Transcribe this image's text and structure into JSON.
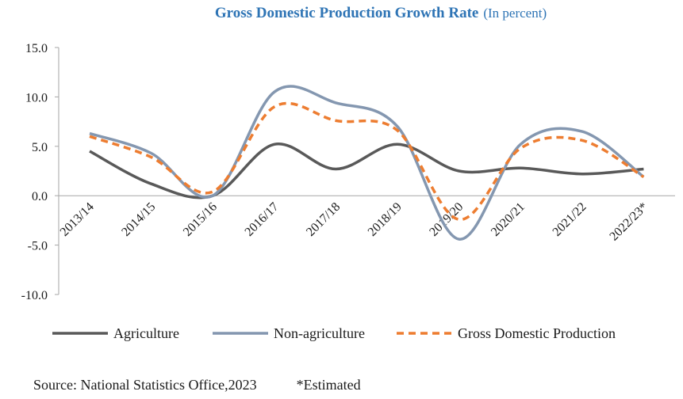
{
  "chart_data": {
    "type": "line",
    "title": "Gross Domestic Production Growth Rate",
    "subtitle": "(In percent)",
    "categories": [
      "2013/14",
      "2014/15",
      "2015/16",
      "2016/17",
      "2017/18",
      "2018/19",
      "2019/20",
      "2020/21",
      "2021/22",
      "2022/23*"
    ],
    "series": [
      {
        "name": "Agriculture",
        "values": [
          4.5,
          1.2,
          0.0,
          5.2,
          2.7,
          5.2,
          2.5,
          2.8,
          2.2,
          2.7
        ],
        "color": "#595959",
        "dash": "solid"
      },
      {
        "name": "Non-agriculture",
        "values": [
          6.3,
          4.3,
          0.0,
          10.5,
          9.4,
          7.0,
          -4.4,
          5.2,
          6.5,
          1.9
        ],
        "color": "#8497b0",
        "dash": "solid"
      },
      {
        "name": "Gross Domestic Production",
        "values": [
          6.0,
          3.9,
          0.4,
          9.0,
          7.6,
          6.6,
          -2.4,
          4.8,
          5.6,
          1.9
        ],
        "color": "#ed7d31",
        "dash": "dashed"
      }
    ],
    "ylim": [
      -10.0,
      15.0
    ],
    "yticks": [
      "15.0",
      "10.0",
      "5.0",
      "0.0",
      "-5.0",
      "-10.0"
    ],
    "xlabel": "",
    "ylabel": "",
    "grid": false,
    "legend": "bottom"
  },
  "footer": {
    "source": "Source: National Statistics Office,2023",
    "note": "*Estimated"
  }
}
